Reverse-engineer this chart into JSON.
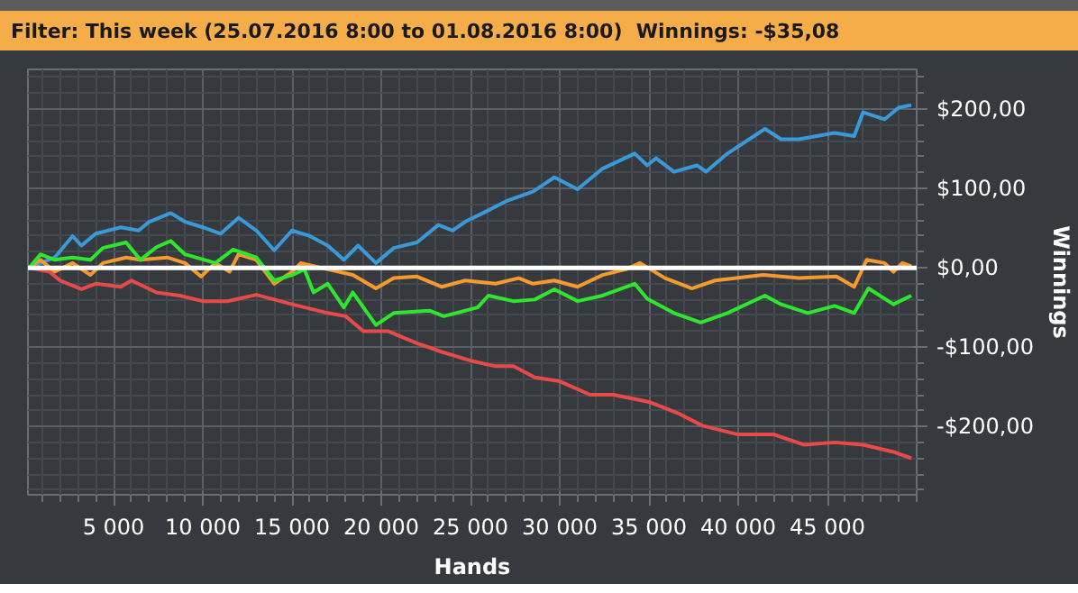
{
  "chart_data": {
    "type": "line",
    "title": "Filter: This week (25.07.2016 8:00 to 01.08.2016 8:00)",
    "subtitle": "Winnings: -$35,08",
    "xlabel": "Hands",
    "ylabel": "Winnings",
    "xlim": [
      200,
      50000
    ],
    "ylim": [
      -286,
      250
    ],
    "xticks": [
      {
        "value": 5000,
        "label": "5 000"
      },
      {
        "value": 10000,
        "label": "10 000"
      },
      {
        "value": 15000,
        "label": "15 000"
      },
      {
        "value": 20000,
        "label": "20 000"
      },
      {
        "value": 25000,
        "label": "25 000"
      },
      {
        "value": 30000,
        "label": "30 000"
      },
      {
        "value": 35000,
        "label": "35 000"
      },
      {
        "value": 40000,
        "label": "40 000"
      },
      {
        "value": 45000,
        "label": "45 000"
      }
    ],
    "yticks": [
      {
        "value": -200,
        "label": "-$200,00"
      },
      {
        "value": -100,
        "label": "-$100,00"
      },
      {
        "value": 0,
        "label": "$0,00"
      },
      {
        "value": 100,
        "label": "$100,00"
      },
      {
        "value": 200,
        "label": "$200,00"
      }
    ],
    "grid": true,
    "ref_lines": [
      {
        "axis": "y",
        "value": 0,
        "color": "#ffffff"
      }
    ],
    "series": [
      {
        "color": "#3a9ad9",
        "x": [
          270,
          1700,
          2700,
          3200,
          4000,
          5400,
          6400,
          7000,
          8200,
          9000,
          10000,
          11000,
          12000,
          13000,
          14000,
          15000,
          16000,
          17000,
          17900,
          18700,
          19700,
          20700,
          22000,
          23200,
          24000,
          24700,
          25700,
          27000,
          28500,
          29700,
          31000,
          32400,
          34200,
          34900,
          35400,
          36400,
          37700,
          38200,
          39400,
          41500,
          42400,
          43400,
          45400,
          46500,
          47000,
          48200,
          49000,
          49700
        ],
        "values": [
          0,
          13,
          40,
          28,
          43,
          51,
          47,
          58,
          69,
          58,
          51,
          43,
          63,
          47,
          22,
          47,
          40,
          28,
          10,
          28,
          6,
          25,
          32,
          54,
          47,
          58,
          69,
          84,
          96,
          114,
          99,
          125,
          144,
          129,
          138,
          121,
          129,
          121,
          144,
          175,
          162,
          162,
          170,
          166,
          196,
          187,
          202,
          205
        ]
      },
      {
        "color": "#f59a2e",
        "x": [
          270,
          900,
          1700,
          2700,
          3700,
          4400,
          5700,
          6500,
          8000,
          9000,
          9900,
          10700,
          11500,
          12000,
          13000,
          14000,
          15000,
          15500,
          17000,
          18400,
          19700,
          20700,
          22000,
          23400,
          24700,
          26400,
          27700,
          28500,
          29700,
          31000,
          32400,
          33700,
          34500,
          35900,
          37400,
          38700,
          41400,
          43400,
          45500,
          46500,
          47200,
          48200,
          48700,
          49200,
          49700
        ],
        "values": [
          0,
          10,
          -5,
          6,
          -9,
          6,
          13,
          10,
          13,
          6,
          -11,
          6,
          -5,
          17,
          10,
          -20,
          -5,
          6,
          -2,
          -9,
          -26,
          -13,
          -11,
          -24,
          -16,
          -20,
          -13,
          -20,
          -16,
          -24,
          -9,
          -2,
          6,
          -13,
          -26,
          -16,
          -9,
          -13,
          -11,
          -24,
          10,
          6,
          -5,
          6,
          2
        ]
      },
      {
        "color": "#2de62d",
        "x": [
          270,
          900,
          1700,
          2700,
          3700,
          4400,
          5700,
          6500,
          7400,
          8200,
          9000,
          10700,
          11700,
          13000,
          14000,
          15000,
          15700,
          16200,
          17000,
          17900,
          18400,
          19700,
          20700,
          22700,
          23500,
          25400,
          26000,
          27400,
          28600,
          29700,
          31000,
          32400,
          34200,
          34900,
          36400,
          37900,
          39400,
          41500,
          42400,
          43900,
          45400,
          46500,
          47300,
          48700,
          49700
        ],
        "values": [
          0,
          17,
          10,
          13,
          10,
          25,
          32,
          10,
          26,
          34,
          17,
          6,
          23,
          13,
          -16,
          -9,
          -2,
          -31,
          -20,
          -50,
          -31,
          -72,
          -57,
          -54,
          -61,
          -50,
          -35,
          -42,
          -40,
          -27,
          -42,
          -35,
          -20,
          -39,
          -57,
          -69,
          -57,
          -35,
          -46,
          -57,
          -48,
          -57,
          -26,
          -46,
          -35
        ]
      },
      {
        "color": "#e84a4a",
        "x": [
          270,
          1400,
          2000,
          3200,
          4000,
          5400,
          6000,
          7400,
          8700,
          10000,
          11400,
          13000,
          15000,
          17000,
          18000,
          19000,
          20400,
          22000,
          23400,
          25000,
          26400,
          27400,
          28600,
          30000,
          31700,
          33000,
          35000,
          36700,
          38000,
          40000,
          42000,
          43700,
          45400,
          47000,
          48700,
          49700
        ],
        "values": [
          0,
          -5,
          -16,
          -27,
          -20,
          -24,
          -16,
          -31,
          -35,
          -42,
          -42,
          -34,
          -46,
          -57,
          -61,
          -80,
          -80,
          -95,
          -106,
          -117,
          -124,
          -124,
          -138,
          -143,
          -160,
          -160,
          -169,
          -184,
          -199,
          -210,
          -210,
          -223,
          -220,
          -223,
          -232,
          -240
        ]
      }
    ]
  }
}
